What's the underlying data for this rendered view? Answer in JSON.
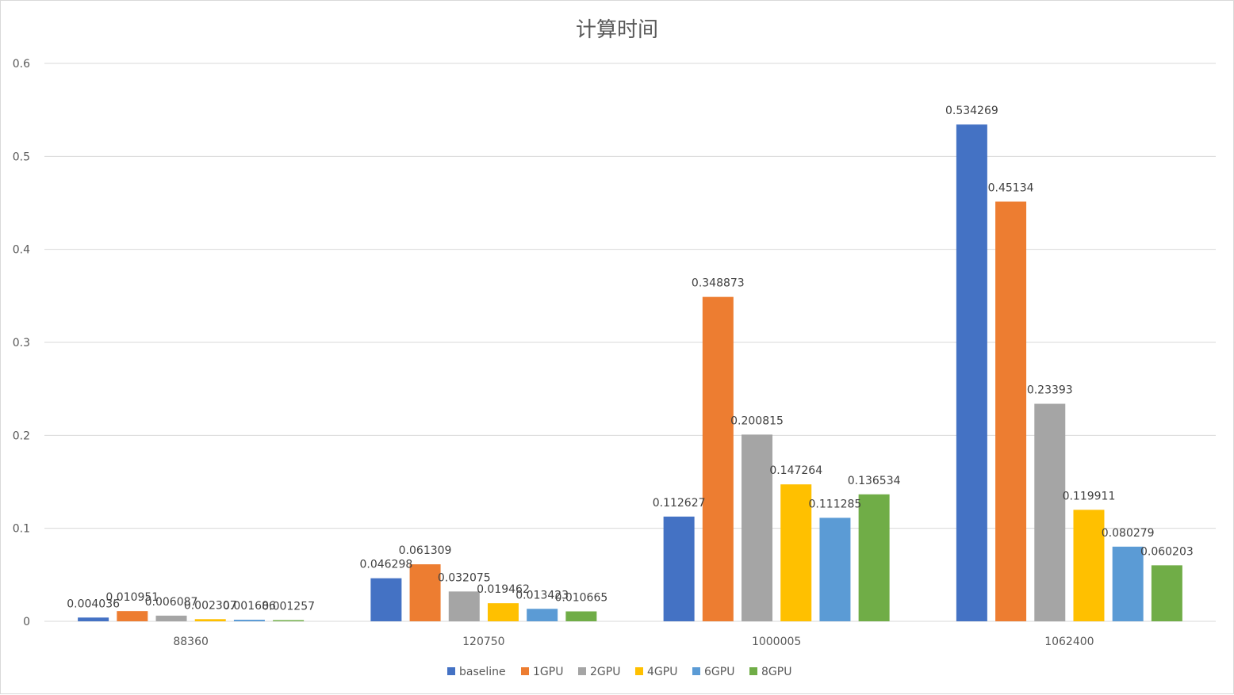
{
  "chart_data": {
    "type": "bar",
    "title": "计算时间",
    "xlabel": "",
    "ylabel": "",
    "categories": [
      "88360",
      "120750",
      "1000005",
      "1062400"
    ],
    "series": [
      {
        "name": "baseline",
        "color": "#4472C4",
        "values": [
          0.004036,
          0.046298,
          0.112627,
          0.534269
        ],
        "labels": [
          "0.004036",
          "0.046298",
          "0.112627",
          "0.534269"
        ]
      },
      {
        "name": "1GPU",
        "color": "#ED7D31",
        "values": [
          0.010951,
          0.061309,
          0.348873,
          0.45134
        ],
        "labels": [
          "0.010951",
          "0.061309",
          "0.348873",
          "0.45134"
        ]
      },
      {
        "name": "2GPU",
        "color": "#A5A5A5",
        "values": [
          0.006087,
          0.032075,
          0.200815,
          0.23393
        ],
        "labels": [
          "0.006087",
          "0.032075",
          "0.200815",
          "0.23393"
        ]
      },
      {
        "name": "4GPU",
        "color": "#FFC000",
        "values": [
          0.002307,
          0.019462,
          0.147264,
          0.119911
        ],
        "labels": [
          "0.002307",
          "0.019462",
          "0.147264",
          "0.119911"
        ]
      },
      {
        "name": "6GPU",
        "color": "#5B9BD5",
        "values": [
          0.001686,
          0.013423,
          0.111285,
          0.080279
        ],
        "labels": [
          "0.001686",
          "0.013423",
          "0.111285",
          "0.080279"
        ]
      },
      {
        "name": "8GPU",
        "color": "#70AD47",
        "values": [
          0.001257,
          0.010665,
          0.136534,
          0.060203
        ],
        "labels": [
          "0.001257",
          "0.010665",
          "0.136534",
          "0.060203"
        ]
      }
    ],
    "ylim": [
      0,
      0.6
    ],
    "yticks": [
      "0",
      "0.1",
      "0.2",
      "0.3",
      "0.4",
      "0.5",
      "0.6"
    ],
    "grid": true,
    "legend_position": "bottom"
  }
}
